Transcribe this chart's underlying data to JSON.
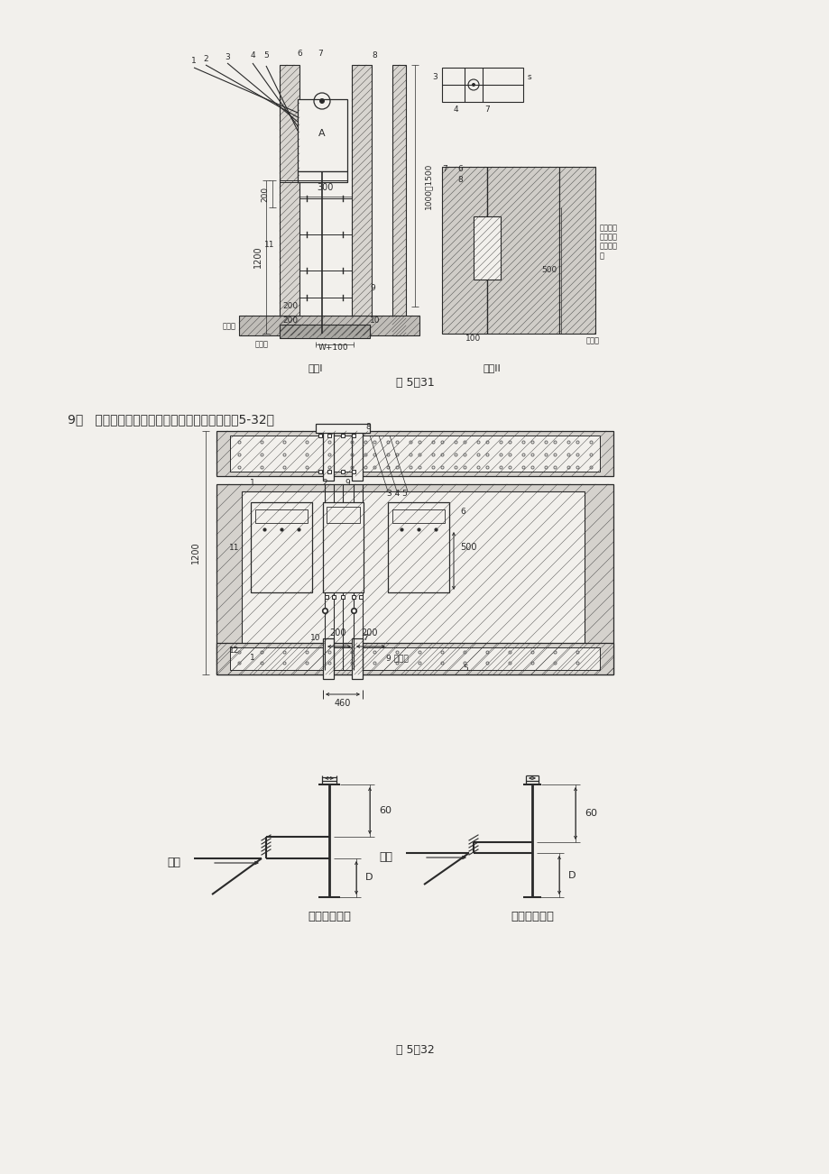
{
  "bg_color": "#f2f0ec",
  "line_color": "#2a2a2a",
  "fig31_caption": "图 5－31",
  "fig32_caption": "图 5－32",
  "text_9": "9、   电气竖井内封闭式母线与配电箱的安装见图5-32。",
  "label_fangan1": "方案I",
  "label_fangan2": "方案II",
  "label_1200": "1200",
  "label_200": "200",
  "label_300": "300",
  "label_1000_1500": "1000～1500",
  "label_floor_concrete": "混凝土",
  "label_waterproof_platform": "防水台",
  "label_W100": "W+100",
  "label_tube_seal": "管口内封\n墙防火堵\n料或石棉\n墙",
  "label_500": "500",
  "label_100": "100",
  "label_floor_concrete_r": "混凝土",
  "label_1200_b": "1200",
  "label_200_b": "200",
  "label_200_c": "200",
  "label_500_b": "500",
  "label_460": "460",
  "label_hanjie1": "焊接",
  "label_hanjie2": "焊接",
  "label_60a": "60",
  "label_60b": "60",
  "label_D1": "D",
  "label_D2": "D",
  "label_flat_steel": "扁钢接地干线",
  "label_round_steel": "圆钢接地干线"
}
